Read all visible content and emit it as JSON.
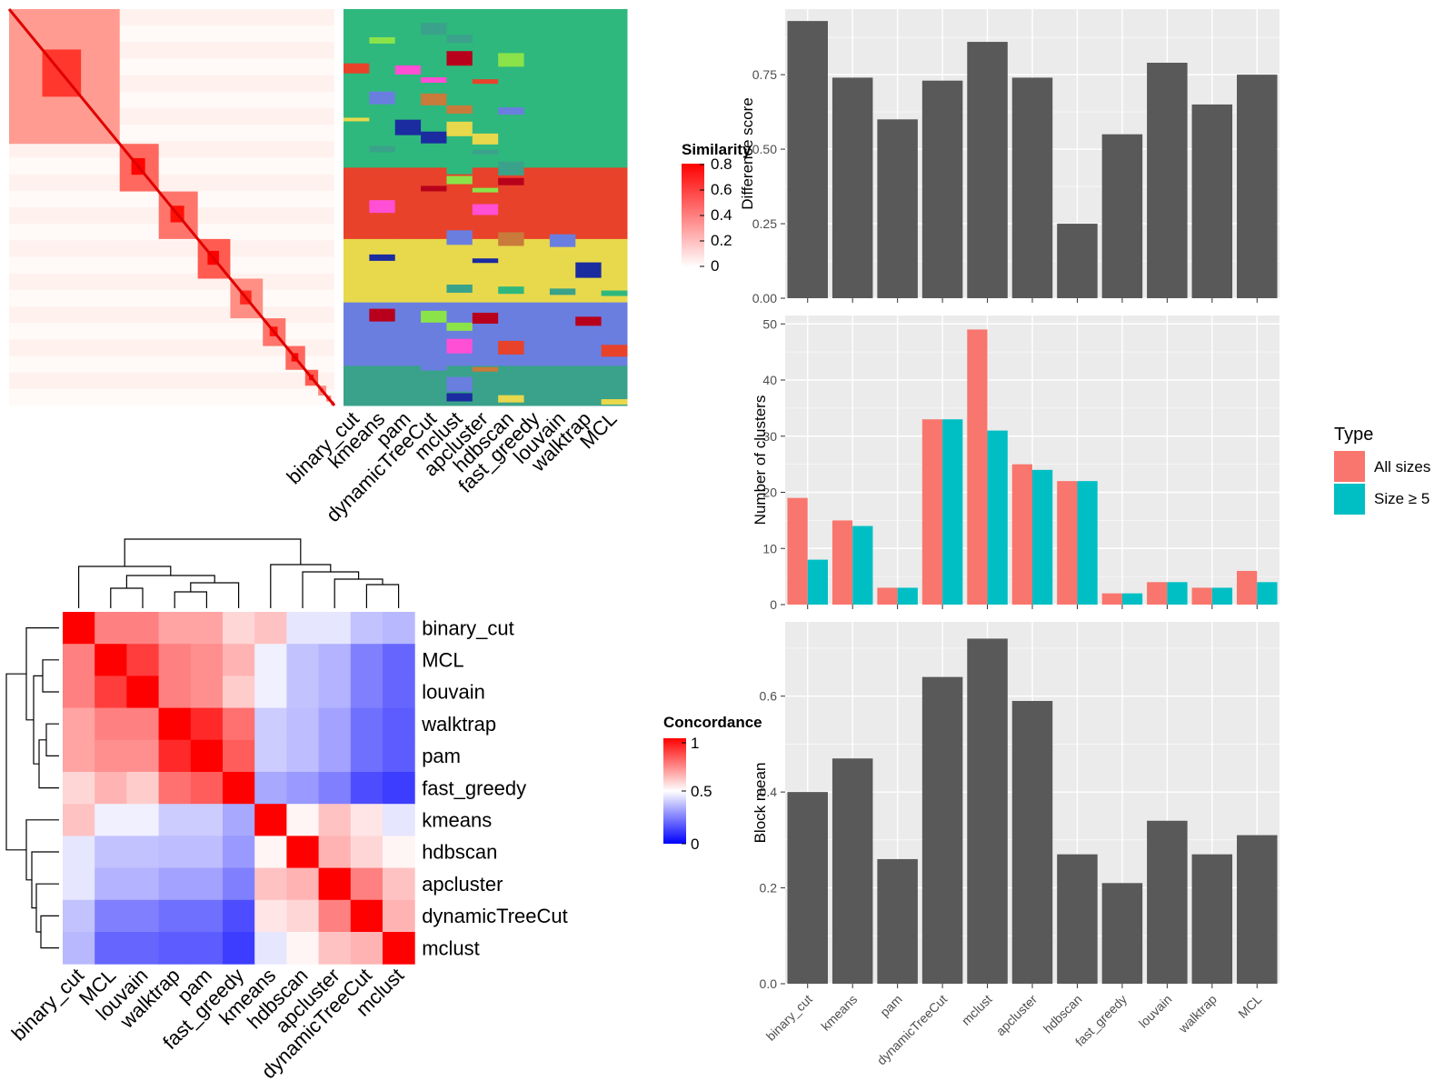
{
  "methods": [
    "binary_cut",
    "kmeans",
    "pam",
    "dynamicTreeCut",
    "mclust",
    "apcluster",
    "hdbscan",
    "fast_greedy",
    "louvain",
    "walktrap",
    "MCL"
  ],
  "similarity_legend": {
    "title": "Similarity",
    "ticks": [
      "0.8",
      "0.6",
      "0.4",
      "0.2",
      "0"
    ]
  },
  "concordance_legend": {
    "title": "Concordance",
    "ticks": [
      "1",
      "0.5",
      "0"
    ]
  },
  "type_legend": {
    "title": "Type",
    "items": [
      {
        "label": "All sizes",
        "color": "#F8766D"
      },
      {
        "label": "Size ≥ 5",
        "color": "#00BFC4"
      }
    ]
  },
  "colors": {
    "bar": "#595959",
    "panel": "#EBEBEB",
    "grid": "#ffffff",
    "all_sizes": "#F8766D",
    "size_ge5": "#00BFC4"
  },
  "chart_data": [
    {
      "type": "heatmap",
      "name": "similarity-matrix",
      "note_legend": "Similarity",
      "blocks": [
        0.55,
        0.75,
        0.7,
        0.8,
        0.6,
        0.7,
        0.75,
        0.8,
        0.6,
        0.65,
        0.7
      ]
    },
    {
      "type": "heatmap",
      "name": "cluster-membership",
      "columns": [
        "binary_cut",
        "kmeans",
        "pam",
        "dynamicTreeCut",
        "mclust",
        "apcluster",
        "hdbscan",
        "fast_greedy",
        "louvain",
        "walktrap",
        "MCL"
      ]
    },
    {
      "type": "heatmap",
      "name": "concordance",
      "rows": [
        "binary_cut",
        "MCL",
        "louvain",
        "walktrap",
        "pam",
        "fast_greedy",
        "kmeans",
        "hdbscan",
        "apcluster",
        "dynamicTreeCut",
        "mclust"
      ],
      "columns": [
        "binary_cut",
        "MCL",
        "louvain",
        "walktrap",
        "pam",
        "fast_greedy",
        "kmeans",
        "hdbscan",
        "apcluster",
        "dynamicTreeCut",
        "mclust"
      ],
      "values": [
        [
          1.0,
          0.75,
          0.75,
          0.68,
          0.68,
          0.58,
          0.62,
          0.45,
          0.45,
          0.38,
          0.36
        ],
        [
          0.75,
          1.0,
          0.88,
          0.75,
          0.72,
          0.65,
          0.47,
          0.38,
          0.35,
          0.25,
          0.2
        ],
        [
          0.75,
          0.88,
          1.0,
          0.75,
          0.72,
          0.6,
          0.47,
          0.38,
          0.35,
          0.25,
          0.2
        ],
        [
          0.68,
          0.75,
          0.75,
          1.0,
          0.92,
          0.78,
          0.4,
          0.37,
          0.32,
          0.22,
          0.18
        ],
        [
          0.68,
          0.72,
          0.72,
          0.92,
          1.0,
          0.82,
          0.4,
          0.37,
          0.32,
          0.22,
          0.18
        ],
        [
          0.58,
          0.65,
          0.6,
          0.78,
          0.82,
          1.0,
          0.33,
          0.3,
          0.25,
          0.15,
          0.12
        ],
        [
          0.62,
          0.47,
          0.47,
          0.4,
          0.4,
          0.33,
          1.0,
          0.52,
          0.62,
          0.55,
          0.45
        ],
        [
          0.45,
          0.38,
          0.38,
          0.37,
          0.37,
          0.3,
          0.52,
          1.0,
          0.65,
          0.58,
          0.52
        ],
        [
          0.45,
          0.35,
          0.35,
          0.32,
          0.32,
          0.25,
          0.62,
          0.65,
          1.0,
          0.75,
          0.62
        ],
        [
          0.38,
          0.25,
          0.25,
          0.22,
          0.22,
          0.15,
          0.55,
          0.58,
          0.75,
          1.0,
          0.65
        ],
        [
          0.36,
          0.2,
          0.2,
          0.18,
          0.18,
          0.12,
          0.45,
          0.52,
          0.62,
          0.65,
          1.0
        ]
      ],
      "scale": [
        0,
        0.5,
        1
      ]
    },
    {
      "type": "bar",
      "name": "difference-score",
      "categories": [
        "binary_cut",
        "kmeans",
        "pam",
        "dynamicTreeCut",
        "mclust",
        "apcluster",
        "hdbscan",
        "fast_greedy",
        "louvain",
        "walktrap",
        "MCL"
      ],
      "values": [
        0.93,
        0.74,
        0.6,
        0.73,
        0.86,
        0.74,
        0.25,
        0.55,
        0.79,
        0.65,
        0.75
      ],
      "xlabel": "",
      "ylabel": "Difference score",
      "ylim": [
        0,
        0.97
      ],
      "yticks": [
        "0.00",
        "0.25",
        "0.50",
        "0.75"
      ],
      "grid": true
    },
    {
      "type": "bar",
      "name": "number-of-clusters",
      "categories": [
        "binary_cut",
        "kmeans",
        "pam",
        "dynamicTreeCut",
        "mclust",
        "apcluster",
        "hdbscan",
        "fast_greedy",
        "louvain",
        "walktrap",
        "MCL"
      ],
      "series": [
        {
          "name": "All sizes",
          "values": [
            19,
            15,
            3,
            33,
            49,
            25,
            22,
            2,
            4,
            3,
            6
          ]
        },
        {
          "name": "Size ≥ 5",
          "values": [
            8,
            14,
            3,
            33,
            31,
            24,
            22,
            2,
            4,
            3,
            4
          ]
        }
      ],
      "xlabel": "",
      "ylabel": "Number of clusters",
      "ylim": [
        0,
        51.5
      ],
      "yticks": [
        "0",
        "10",
        "20",
        "30",
        "40",
        "50"
      ],
      "legend": "right",
      "grid": true
    },
    {
      "type": "bar",
      "name": "block-mean",
      "categories": [
        "binary_cut",
        "kmeans",
        "pam",
        "dynamicTreeCut",
        "mclust",
        "apcluster",
        "hdbscan",
        "fast_greedy",
        "louvain",
        "walktrap",
        "MCL"
      ],
      "values": [
        0.4,
        0.47,
        0.26,
        0.64,
        0.72,
        0.59,
        0.27,
        0.21,
        0.34,
        0.27,
        0.31
      ],
      "xlabel": "",
      "ylabel": "Block mean",
      "ylim": [
        0,
        0.755
      ],
      "yticks": [
        "0.0",
        "0.2",
        "0.4",
        "0.6"
      ],
      "grid": true
    }
  ]
}
